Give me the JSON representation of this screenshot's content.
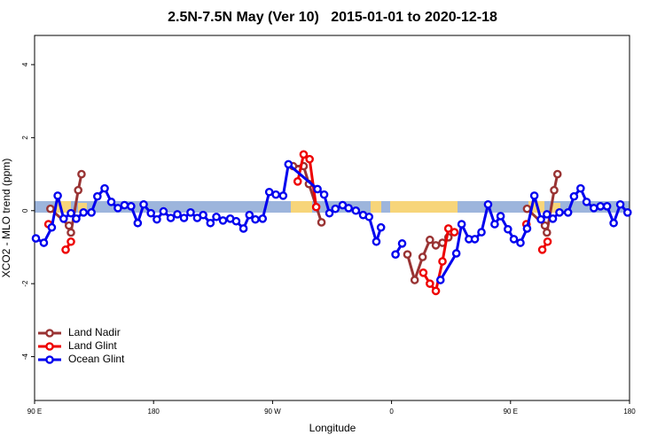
{
  "chart_data": {
    "type": "line",
    "title": "2.5N-7.5N May (Ver 10)   2015-01-01 to 2020-12-18",
    "xlabel": "Longitude",
    "ylabel": "XCO2 - MLO trend (ppm)",
    "xlim": [
      90,
      540
    ],
    "xticks": [
      {
        "value": 90,
        "label": "90 E"
      },
      180,
      {
        "value": 270,
        "label": "90 W"
      },
      {
        "value": 360,
        "label": "0"
      },
      {
        "value": 450,
        "label": "90 E"
      },
      {
        "value": 540,
        "label": "180"
      }
    ],
    "ylim": [
      -5.2,
      4.8
    ],
    "yticks": [
      -4,
      -2,
      0,
      2,
      4
    ],
    "legend": "bottom-left",
    "series": [
      {
        "name": "Land Nadir",
        "color": "#993333",
        "x": [
          102,
          116,
          117.5,
          123,
          125.5,
          null,
          285.5,
          293.5,
          297.5,
          307,
          null,
          372,
          377.5,
          383.5,
          389,
          393.5,
          398.5,
          403,
          null,
          462.5,
          476,
          477.5,
          483,
          485.5
        ],
        "values": [
          0.05,
          -0.41,
          -0.6,
          0.56,
          1.0,
          null,
          1.22,
          1.22,
          0.73,
          -0.32,
          null,
          -1.2,
          -1.9,
          -1.27,
          -0.8,
          -0.95,
          -0.88,
          -0.73,
          null,
          0.05,
          -0.41,
          -0.6,
          0.56,
          1.0
        ]
      },
      {
        "name": "Land Glint",
        "color": "#ee0000",
        "x": [
          100.5,
          null,
          113.5,
          117.5,
          null,
          289,
          293.5,
          298,
          303,
          null,
          384,
          389,
          393.5,
          398.5,
          403,
          407.5,
          null,
          462,
          null,
          474,
          478
        ],
        "values": [
          -0.37,
          null,
          -1.07,
          -0.85,
          null,
          0.8,
          1.54,
          1.41,
          0.1,
          null,
          -1.7,
          -2.0,
          -2.2,
          -1.39,
          -0.49,
          -0.59,
          null,
          -0.37,
          null,
          -1.07,
          -0.85
        ]
      },
      {
        "name": "Ocean Glint",
        "color": "#0000ee",
        "x": [
          91,
          97,
          103,
          107.5,
          112,
          117.5,
          121.5,
          127,
          133,
          137.5,
          143,
          148,
          153,
          158,
          163,
          168,
          172.5,
          178,
          182.5,
          187.5,
          193,
          198,
          203,
          208,
          213,
          217.5,
          223,
          227.5,
          232.5,
          238,
          242.5,
          248,
          252.5,
          257,
          262.5,
          267.5,
          272.5,
          278,
          282,
          304,
          309,
          313,
          317.5,
          323,
          327.5,
          333,
          338.5,
          343,
          348.5,
          352,
          null,
          363,
          368,
          null,
          397,
          409,
          413,
          418.5,
          423,
          428,
          433,
          438,
          442.5,
          448,
          452.5,
          457.5,
          462.5,
          468,
          473,
          477.5,
          482,
          487,
          493.5,
          498,
          503,
          507.5,
          513,
          518,
          523,
          528,
          533,
          538.5
        ],
        "values": [
          -0.76,
          -0.88,
          -0.46,
          0.41,
          -0.22,
          -0.07,
          -0.22,
          -0.05,
          -0.05,
          0.39,
          0.61,
          0.24,
          0.07,
          0.15,
          0.12,
          -0.34,
          0.17,
          -0.07,
          -0.24,
          -0.02,
          -0.2,
          -0.1,
          -0.2,
          -0.05,
          -0.2,
          -0.12,
          -0.34,
          -0.17,
          -0.27,
          -0.22,
          -0.29,
          -0.49,
          -0.12,
          -0.24,
          -0.22,
          0.51,
          0.44,
          0.41,
          1.27,
          0.59,
          0.44,
          -0.07,
          0.05,
          0.15,
          0.07,
          0,
          -0.12,
          -0.17,
          -0.85,
          -0.46,
          null,
          -1.2,
          -0.9,
          null,
          -1.9,
          -1.17,
          -0.37,
          -0.78,
          -0.78,
          -0.59,
          0.17,
          -0.37,
          -0.15,
          -0.51,
          -0.78,
          -0.88,
          -0.49,
          0.41,
          -0.24,
          -0.1,
          -0.22,
          -0.05,
          -0.05,
          0.39,
          0.61,
          0.24,
          0.07,
          0.12,
          0.12,
          -0.34,
          0.17,
          -0.05
        ]
      }
    ]
  }
}
